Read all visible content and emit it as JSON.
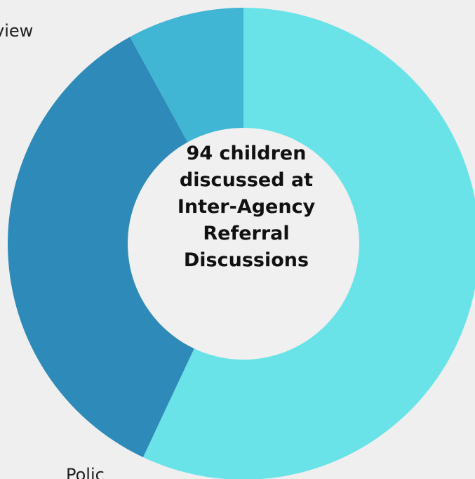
{
  "chart_data": {
    "type": "pie",
    "variant": "donut",
    "categories": [
      "",
      "Review",
      "Police"
    ],
    "values": [
      57,
      35,
      8
    ],
    "colors": [
      "#6ae3e8",
      "#2e8bb9",
      "#41b5d4"
    ],
    "center_text": [
      "94 children",
      "discussed at",
      "Inter-Agency",
      "Referral",
      "Discussions"
    ],
    "visible_labels": {
      "review": "view",
      "police": "Polic"
    },
    "colors_meta": {
      "background": "#efefef",
      "hole": "#f0f0f0"
    }
  }
}
